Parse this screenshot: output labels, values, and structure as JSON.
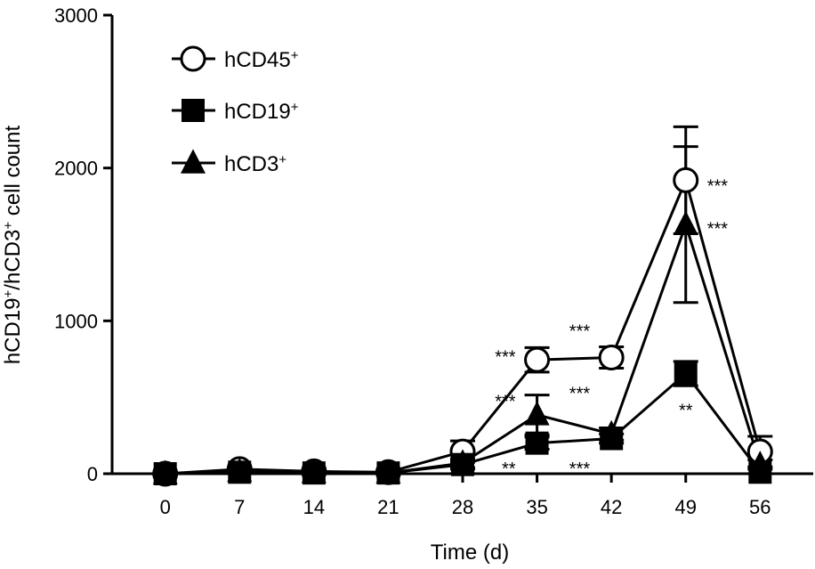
{
  "chart_data": {
    "type": "line",
    "xlabel": "Time (d)",
    "ylabel_base": "hCD19",
    "ylabel_mid": "/hCD3",
    "ylabel_end": " cell count",
    "ylabel_sup": "+",
    "x": [
      0,
      7,
      14,
      21,
      28,
      35,
      42,
      49,
      56
    ],
    "xlim": [
      -5,
      61
    ],
    "ylim": [
      0,
      3000
    ],
    "yticks": [
      0,
      1000,
      2000,
      3000
    ],
    "series": [
      {
        "name_base": "hCD45",
        "name_sup": "+",
        "marker": "open-circle",
        "values": [
          0,
          30,
          15,
          10,
          145,
          745,
          760,
          1920,
          145
        ],
        "errors": [
          0,
          0,
          0,
          0,
          70,
          80,
          70,
          350,
          100
        ]
      },
      {
        "name_base": "hCD19",
        "name_sup": "+",
        "marker": "filled-square",
        "values": [
          0,
          10,
          5,
          5,
          60,
          200,
          230,
          655,
          10
        ],
        "errors": [
          0,
          0,
          0,
          0,
          30,
          40,
          30,
          80,
          0
        ]
      },
      {
        "name_base": "hCD3",
        "name_sup": "+",
        "marker": "filled-triangle",
        "values": [
          0,
          15,
          8,
          5,
          70,
          385,
          260,
          1630,
          60
        ],
        "errors": [
          0,
          0,
          0,
          0,
          30,
          130,
          40,
          510,
          30
        ]
      }
    ],
    "annotations": [
      {
        "text": "***",
        "x": 35,
        "y": 760,
        "side": "left"
      },
      {
        "text": "***",
        "x": 35,
        "y": 470,
        "side": "left"
      },
      {
        "text": "**",
        "x": 35,
        "y": 30,
        "side": "left"
      },
      {
        "text": "***",
        "x": 42,
        "y": 930,
        "side": "left"
      },
      {
        "text": "***",
        "x": 42,
        "y": 520,
        "side": "left"
      },
      {
        "text": "***",
        "x": 42,
        "y": 30,
        "side": "left"
      },
      {
        "text": "***",
        "x": 49,
        "y": 1880,
        "side": "right"
      },
      {
        "text": "***",
        "x": 49,
        "y": 1600,
        "side": "right"
      },
      {
        "text": "**",
        "x": 49,
        "y": 410,
        "side": "center"
      }
    ]
  }
}
